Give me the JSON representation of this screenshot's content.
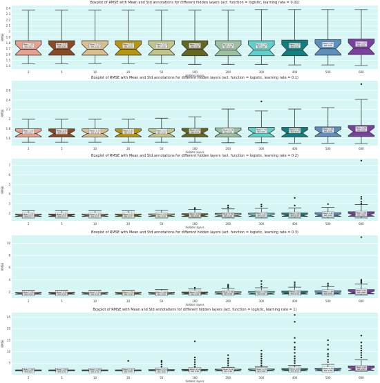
{
  "figure": {
    "background": "#ffffff",
    "panel_bg": "#d6f5f5",
    "grid_color": "#ffffff"
  },
  "chart_data": [
    {
      "type": "box",
      "title": "Boxplot of RMSE with Mean and Std annotations for different hidden layers (act. function = logistic, learning rate = 0.01)",
      "xlabel": "hidden layers",
      "ylabel": "RMSE",
      "categories": [
        "2",
        "5",
        "10",
        "20",
        "50",
        "100",
        "200",
        "300",
        "400",
        "500",
        "600"
      ],
      "ylim": [
        1.35,
        2.45
      ],
      "yticks": [
        1.4,
        1.5,
        1.6,
        1.7,
        1.8,
        1.9,
        2.0,
        2.1,
        2.2,
        2.3,
        2.4
      ],
      "colors": [
        "#e8a08e",
        "#8b4a22",
        "#d9bd8c",
        "#b8950f",
        "#c2c48a",
        "#66661e",
        "#9cc19e",
        "#5ecfcb",
        "#107f7f",
        "#5a8fbe",
        "#7b3fa0"
      ],
      "boxes": [
        {
          "whislo": 1.44,
          "q1": 1.59,
          "med": 1.69,
          "q3": 1.84,
          "whishi": 2.37,
          "fliers": [],
          "mean": "1.72",
          "std": "0.20"
        },
        {
          "whislo": 1.44,
          "q1": 1.59,
          "med": 1.69,
          "q3": 1.84,
          "whishi": 2.37,
          "fliers": [],
          "mean": "1.72",
          "std": "0.20"
        },
        {
          "whislo": 1.44,
          "q1": 1.59,
          "med": 1.69,
          "q3": 1.84,
          "whishi": 2.37,
          "fliers": [],
          "mean": "1.72",
          "std": "0.20"
        },
        {
          "whislo": 1.44,
          "q1": 1.59,
          "med": 1.69,
          "q3": 1.84,
          "whishi": 2.37,
          "fliers": [],
          "mean": "1.72",
          "std": "0.20"
        },
        {
          "whislo": 1.44,
          "q1": 1.59,
          "med": 1.69,
          "q3": 1.84,
          "whishi": 2.37,
          "fliers": [],
          "mean": "1.72",
          "std": "0.20"
        },
        {
          "whislo": 1.43,
          "q1": 1.58,
          "med": 1.69,
          "q3": 1.84,
          "whishi": 2.37,
          "fliers": [],
          "mean": "1.72",
          "std": "0.20"
        },
        {
          "whislo": 1.43,
          "q1": 1.58,
          "med": 1.68,
          "q3": 1.84,
          "whishi": 2.37,
          "fliers": [],
          "mean": "1.72",
          "std": "0.20"
        },
        {
          "whislo": 1.43,
          "q1": 1.58,
          "med": 1.68,
          "q3": 1.84,
          "whishi": 2.38,
          "fliers": [],
          "mean": "1.72",
          "std": "0.20"
        },
        {
          "whislo": 1.42,
          "q1": 1.58,
          "med": 1.68,
          "q3": 1.85,
          "whishi": 2.38,
          "fliers": [],
          "mean": "1.72",
          "std": "0.21"
        },
        {
          "whislo": 1.42,
          "q1": 1.59,
          "med": 1.7,
          "q3": 1.86,
          "whishi": 2.38,
          "fliers": [],
          "mean": "1.73",
          "std": "0.21"
        },
        {
          "whislo": 1.41,
          "q1": 1.6,
          "med": 1.71,
          "q3": 1.87,
          "whishi": 2.38,
          "fliers": [],
          "mean": "1.74",
          "std": "0.21"
        }
      ]
    },
    {
      "type": "box",
      "title": "Boxplot of RMSE with Mean and Std annotations for different hidden layers (act. function = logistic, learning rate = 0.1)",
      "xlabel": "hidden layers",
      "ylabel": "RMSE",
      "categories": [
        "2",
        "5",
        "10",
        "20",
        "50",
        "100",
        "200",
        "300",
        "400",
        "500",
        "600"
      ],
      "ylim": [
        1.45,
        2.8
      ],
      "yticks": [
        1.6,
        1.8,
        2.0,
        2.2,
        2.4,
        2.6
      ],
      "colors": [
        "#e8a08e",
        "#8b4a22",
        "#d9bd8c",
        "#b8950f",
        "#c2c48a",
        "#66661e",
        "#9cc19e",
        "#5ecfcb",
        "#107f7f",
        "#5a8fbe",
        "#7b3fa0"
      ],
      "boxes": [
        {
          "whislo": 1.52,
          "q1": 1.63,
          "med": 1.7,
          "q3": 1.8,
          "whishi": 2.0,
          "fliers": [],
          "mean": "1.72",
          "std": "0.12"
        },
        {
          "whislo": 1.52,
          "q1": 1.63,
          "med": 1.7,
          "q3": 1.8,
          "whishi": 2.0,
          "fliers": [],
          "mean": "1.72",
          "std": "0.12"
        },
        {
          "whislo": 1.52,
          "q1": 1.63,
          "med": 1.7,
          "q3": 1.8,
          "whishi": 2.0,
          "fliers": [],
          "mean": "1.72",
          "std": "0.12"
        },
        {
          "whislo": 1.52,
          "q1": 1.63,
          "med": 1.7,
          "q3": 1.8,
          "whishi": 2.0,
          "fliers": [],
          "mean": "1.72",
          "std": "0.12"
        },
        {
          "whislo": 1.52,
          "q1": 1.63,
          "med": 1.7,
          "q3": 1.8,
          "whishi": 2.02,
          "fliers": [],
          "mean": "1.72",
          "std": "0.13"
        },
        {
          "whislo": 1.52,
          "q1": 1.63,
          "med": 1.71,
          "q3": 1.81,
          "whishi": 2.05,
          "fliers": [],
          "mean": "1.74",
          "std": "0.13"
        },
        {
          "whislo": 1.51,
          "q1": 1.63,
          "med": 1.71,
          "q3": 1.82,
          "whishi": 2.21,
          "fliers": [],
          "mean": "1.74",
          "std": "0.14"
        },
        {
          "whislo": 1.51,
          "q1": 1.63,
          "med": 1.71,
          "q3": 1.83,
          "whishi": 2.17,
          "fliers": [
            2.37
          ],
          "mean": "1.74",
          "std": "0.15"
        },
        {
          "whislo": 1.5,
          "q1": 1.63,
          "med": 1.71,
          "q3": 1.83,
          "whishi": 2.21,
          "fliers": [],
          "mean": "1.74",
          "std": "0.15"
        },
        {
          "whislo": 1.5,
          "q1": 1.64,
          "med": 1.72,
          "q3": 1.84,
          "whishi": 2.24,
          "fliers": [],
          "mean": "1.75",
          "std": "0.16"
        },
        {
          "whislo": 1.49,
          "q1": 1.64,
          "med": 1.74,
          "q3": 1.87,
          "whishi": 2.41,
          "fliers": [
            2.73
          ],
          "mean": "1.78",
          "std": "0.18"
        }
      ]
    },
    {
      "type": "box",
      "title": "Boxplot of RMSE with Mean and Std annotations for different hidden layers (act. function = logistic, learning rate = 0.2)",
      "xlabel": "hidden layers",
      "ylabel": "RMSE",
      "categories": [
        "2",
        "5",
        "10",
        "20",
        "50",
        "100",
        "200",
        "300",
        "400",
        "500",
        "600"
      ],
      "ylim": [
        1.2,
        7.7
      ],
      "yticks": [
        2,
        3,
        4,
        5,
        6,
        7
      ],
      "colors": [
        "#e8a08e",
        "#8b4a22",
        "#d9bd8c",
        "#b8950f",
        "#c2c48a",
        "#66661e",
        "#9cc19e",
        "#5ecfcb",
        "#107f7f",
        "#5a8fbe",
        "#7b3fa0"
      ],
      "boxes": [
        {
          "whislo": 1.5,
          "q1": 1.65,
          "med": 1.75,
          "q3": 1.9,
          "whishi": 2.25,
          "fliers": [],
          "mean": "1.77",
          "std": "0.17"
        },
        {
          "whislo": 1.5,
          "q1": 1.65,
          "med": 1.75,
          "q3": 1.9,
          "whishi": 2.25,
          "fliers": [],
          "mean": "1.77",
          "std": "0.17"
        },
        {
          "whislo": 1.5,
          "q1": 1.65,
          "med": 1.75,
          "q3": 1.9,
          "whishi": 2.25,
          "fliers": [],
          "mean": "1.77",
          "std": "0.17"
        },
        {
          "whislo": 1.5,
          "q1": 1.65,
          "med": 1.75,
          "q3": 1.9,
          "whishi": 2.25,
          "fliers": [],
          "mean": "1.77",
          "std": "0.17"
        },
        {
          "whislo": 1.5,
          "q1": 1.65,
          "med": 1.75,
          "q3": 1.92,
          "whishi": 2.3,
          "fliers": [],
          "mean": "1.78",
          "std": "0.18"
        },
        {
          "whislo": 1.5,
          "q1": 1.65,
          "med": 1.76,
          "q3": 1.95,
          "whishi": 2.4,
          "fliers": [
            2.45,
            2.55
          ],
          "mean": "1.80",
          "std": "0.20"
        },
        {
          "whislo": 1.5,
          "q1": 1.65,
          "med": 1.77,
          "q3": 1.98,
          "whishi": 2.45,
          "fliers": [
            2.6,
            2.8
          ],
          "mean": "1.82",
          "std": "0.22"
        },
        {
          "whislo": 1.5,
          "q1": 1.65,
          "med": 1.77,
          "q3": 2.0,
          "whishi": 2.5,
          "fliers": [
            2.7,
            2.9
          ],
          "mean": "1.83",
          "std": "0.25"
        },
        {
          "whislo": 1.5,
          "q1": 1.66,
          "med": 1.78,
          "q3": 2.02,
          "whishi": 2.55,
          "fliers": [
            2.8,
            3.6
          ],
          "mean": "1.85",
          "std": "0.30"
        },
        {
          "whislo": 1.5,
          "q1": 1.66,
          "med": 1.79,
          "q3": 2.05,
          "whishi": 2.6,
          "fliers": [
            2.95
          ],
          "mean": "1.87",
          "std": "0.31"
        },
        {
          "whislo": 1.5,
          "q1": 1.67,
          "med": 1.82,
          "q3": 2.15,
          "whishi": 2.9,
          "fliers": [
            3.0,
            3.2,
            3.5,
            3.7,
            7.5
          ],
          "mean": "1.95",
          "std": "0.52"
        }
      ]
    },
    {
      "type": "box",
      "title": "Boxplot of RMSE with Mean and Std annotations for different hidden layers (act. function = logistic, learning rate = 0.3)",
      "xlabel": "hidden layers",
      "ylabel": "RMSE",
      "categories": [
        "2",
        "5",
        "10",
        "20",
        "50",
        "100",
        "200",
        "300",
        "400",
        "500",
        "600"
      ],
      "ylim": [
        1.0,
        11.3
      ],
      "yticks": [
        2,
        4,
        6,
        8,
        10
      ],
      "colors": [
        "#e8a08e",
        "#8b4a22",
        "#d9bd8c",
        "#b8950f",
        "#c2c48a",
        "#66661e",
        "#9cc19e",
        "#5ecfcb",
        "#107f7f",
        "#5a8fbe",
        "#7b3fa0"
      ],
      "boxes": [
        {
          "whislo": 1.5,
          "q1": 1.65,
          "med": 1.75,
          "q3": 1.95,
          "whishi": 2.3,
          "fliers": [],
          "mean": "1.78",
          "std": "0.18"
        },
        {
          "whislo": 1.5,
          "q1": 1.65,
          "med": 1.75,
          "q3": 1.95,
          "whishi": 2.3,
          "fliers": [],
          "mean": "1.78",
          "std": "0.18"
        },
        {
          "whislo": 1.5,
          "q1": 1.65,
          "med": 1.75,
          "q3": 1.95,
          "whishi": 2.3,
          "fliers": [],
          "mean": "1.78",
          "std": "0.18"
        },
        {
          "whislo": 1.5,
          "q1": 1.65,
          "med": 1.75,
          "q3": 1.95,
          "whishi": 2.3,
          "fliers": [],
          "mean": "1.78",
          "std": "0.18"
        },
        {
          "whislo": 1.5,
          "q1": 1.65,
          "med": 1.76,
          "q3": 1.98,
          "whishi": 2.4,
          "fliers": [],
          "mean": "1.80",
          "std": "0.20"
        },
        {
          "whislo": 1.5,
          "q1": 1.65,
          "med": 1.77,
          "q3": 2.0,
          "whishi": 2.5,
          "fliers": [
            2.7
          ],
          "mean": "1.82",
          "std": "0.24"
        },
        {
          "whislo": 1.5,
          "q1": 1.66,
          "med": 1.78,
          "q3": 2.05,
          "whishi": 2.6,
          "fliers": [
            2.8,
            3.0,
            3.2
          ],
          "mean": "1.86",
          "std": "0.30"
        },
        {
          "whislo": 1.5,
          "q1": 1.66,
          "med": 1.79,
          "q3": 2.1,
          "whishi": 2.7,
          "fliers": [
            2.9,
            3.3,
            3.8
          ],
          "mean": "1.89",
          "std": "0.35"
        },
        {
          "whislo": 1.5,
          "q1": 1.67,
          "med": 1.8,
          "q3": 2.15,
          "whishi": 2.8,
          "fliers": [
            3.0,
            3.3,
            3.6
          ],
          "mean": "1.91",
          "std": "0.38"
        },
        {
          "whislo": 1.5,
          "q1": 1.67,
          "med": 1.82,
          "q3": 2.2,
          "whishi": 2.9,
          "fliers": [
            3.1,
            3.4
          ],
          "mean": "1.94",
          "std": "0.40"
        },
        {
          "whislo": 1.5,
          "q1": 1.7,
          "med": 1.9,
          "q3": 2.4,
          "whishi": 3.3,
          "fliers": [
            3.5,
            3.7,
            3.9,
            4.0,
            11.0
          ],
          "mean": "2.11",
          "std": "0.88"
        }
      ]
    },
    {
      "type": "box",
      "title": "Boxplot of RMSE with Mean and Std annotations for different hidden layers (act. function = logistic, learning rate = 1)",
      "xlabel": "hidden layers",
      "ylabel": "RMSE",
      "categories": [
        "2",
        "5",
        "10",
        "20",
        "50",
        "100",
        "200",
        "300",
        "400",
        "500",
        "600"
      ],
      "ylim": [
        0,
        27
      ],
      "yticks": [
        5,
        10,
        15,
        20,
        25
      ],
      "colors": [
        "#e8a08e",
        "#8b4a22",
        "#d9bd8c",
        "#b8950f",
        "#c2c48a",
        "#66661e",
        "#9cc19e",
        "#5ecfcb",
        "#107f7f",
        "#5a8fbe",
        "#7b3fa0"
      ],
      "boxes": [
        {
          "whislo": 1.5,
          "q1": 1.7,
          "med": 1.85,
          "q3": 2.1,
          "whishi": 2.5,
          "fliers": [],
          "mean": "1.90",
          "std": "0.25"
        },
        {
          "whislo": 1.5,
          "q1": 1.7,
          "med": 1.85,
          "q3": 2.1,
          "whishi": 2.5,
          "fliers": [],
          "mean": "1.90",
          "std": "0.25"
        },
        {
          "whislo": 1.5,
          "q1": 1.7,
          "med": 1.85,
          "q3": 2.1,
          "whishi": 2.5,
          "fliers": [],
          "mean": "1.90",
          "std": "0.25"
        },
        {
          "whislo": 1.5,
          "q1": 1.7,
          "med": 1.85,
          "q3": 2.1,
          "whishi": 2.6,
          "fliers": [
            6.0
          ],
          "mean": "1.93",
          "std": "0.43"
        },
        {
          "whislo": 1.5,
          "q1": 1.7,
          "med": 1.87,
          "q3": 2.2,
          "whishi": 2.8,
          "fliers": [
            3.5,
            4.5,
            5.5,
            6.0
          ],
          "mean": "2.01",
          "std": "0.65"
        },
        {
          "whislo": 1.5,
          "q1": 1.7,
          "med": 1.9,
          "q3": 2.3,
          "whishi": 3.0,
          "fliers": [
            3.5,
            4.5,
            5.5,
            6.5,
            7.5,
            14.5
          ],
          "mean": "2.14",
          "std": "1.30"
        },
        {
          "whislo": 1.5,
          "q1": 1.7,
          "med": 1.92,
          "q3": 2.4,
          "whishi": 3.2,
          "fliers": [
            4.0,
            5.0,
            6.0,
            7.0,
            8.5
          ],
          "mean": "2.22",
          "std": "1.10"
        },
        {
          "whislo": 1.5,
          "q1": 1.72,
          "med": 1.95,
          "q3": 2.5,
          "whishi": 3.4,
          "fliers": [
            4.0,
            5.0,
            6.0,
            7.0,
            8.0,
            9.0,
            10.5
          ],
          "mean": "2.35",
          "std": "1.45"
        },
        {
          "whislo": 1.5,
          "q1": 1.75,
          "med": 2.0,
          "q3": 2.7,
          "whishi": 4.0,
          "fliers": [
            5.0,
            6.0,
            7.0,
            8.0,
            9.5,
            11.0,
            12.0,
            14.0,
            16.0,
            23.0,
            26.0
          ],
          "mean": "2.85",
          "std": "3.18"
        },
        {
          "whislo": 1.5,
          "q1": 1.75,
          "med": 2.05,
          "q3": 2.8,
          "whishi": 4.5,
          "fliers": [
            5.5,
            6.5,
            8.0,
            9.0,
            11.0,
            13.0,
            15.0
          ],
          "mean": "2.78",
          "std": "2.26"
        },
        {
          "whislo": 1.5,
          "q1": 1.85,
          "med": 2.4,
          "q3": 3.8,
          "whishi": 6.5,
          "fliers": [
            7.5,
            8.5,
            9.5,
            10.5,
            11.5,
            12.5,
            14.0,
            17.0
          ],
          "mean": "3.42",
          "std": "2.63"
        }
      ]
    }
  ]
}
